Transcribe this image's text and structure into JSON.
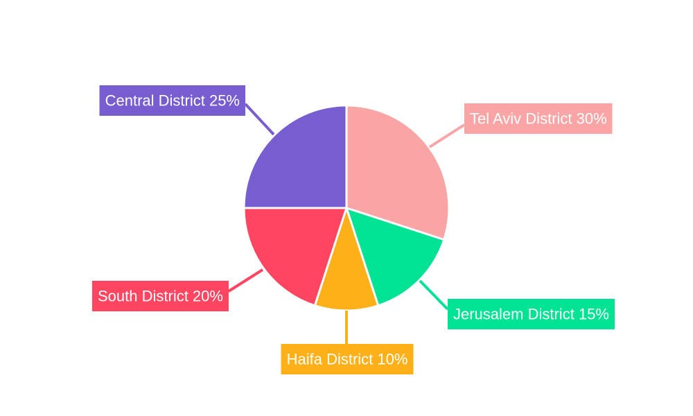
{
  "chart_data": {
    "type": "pie",
    "title": "",
    "start_angle_deg": 0,
    "direction": "clockwise",
    "slices": [
      {
        "label": "Tel Aviv District",
        "value": 30,
        "display": "Tel Aviv District 30%",
        "color": "#F9A5A6"
      },
      {
        "label": "Jerusalem District",
        "value": 15,
        "display": "Jerusalem District 15%",
        "color": "#00E394"
      },
      {
        "label": "Haifa District",
        "value": 10,
        "display": "Haifa District 10%",
        "color": "#FEB019"
      },
      {
        "label": "South District",
        "value": 20,
        "display": "South District 20%",
        "color": "#FF4560"
      },
      {
        "label": "Central District",
        "value": 25,
        "display": "Central District 25%",
        "color": "#775DD0"
      }
    ]
  }
}
